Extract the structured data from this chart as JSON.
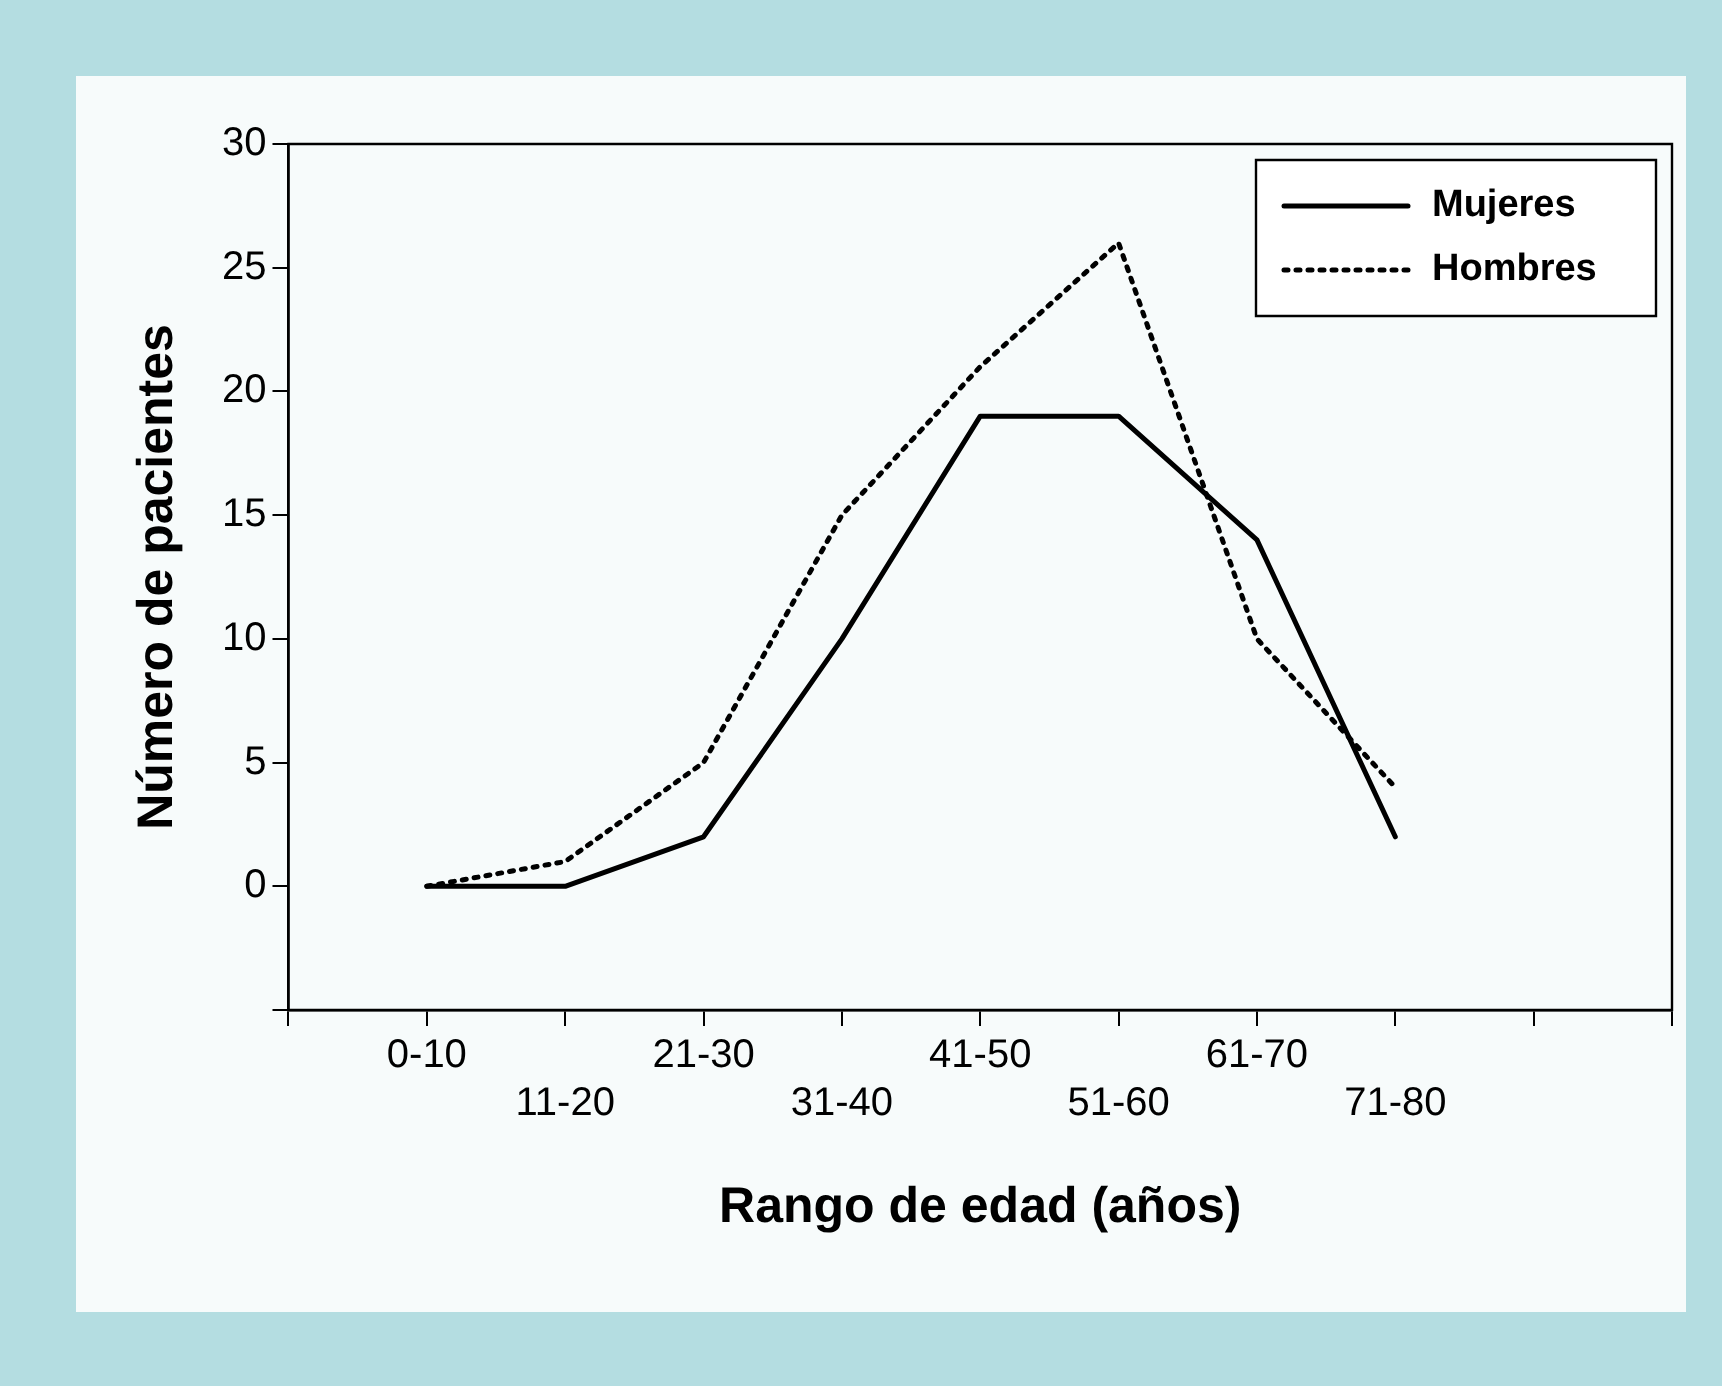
{
  "chart_data": {
    "type": "line",
    "xlabel": "Rango de edad (años)",
    "ylabel": "Número de pacientes",
    "categories": [
      null,
      "0-10",
      "11-20",
      "21-30",
      "31-40",
      "41-50",
      "51-60",
      "61-70",
      "71-80",
      null,
      null
    ],
    "series": [
      {
        "name": "Mujeres",
        "color": "#000000",
        "line_style": "solid",
        "values": [
          null,
          0,
          0,
          2,
          10,
          19,
          19,
          14,
          2,
          null,
          null
        ]
      },
      {
        "name": "Hombres",
        "color": "#000000",
        "line_style": "dotted",
        "values": [
          null,
          0,
          1,
          5,
          15,
          21,
          26,
          10,
          4,
          null,
          null
        ]
      }
    ],
    "ylim": [
      -5,
      30
    ],
    "yticks": [
      {
        "value": -5,
        "label": null
      },
      0,
      5,
      10,
      15,
      20,
      25,
      30
    ],
    "grid": false,
    "legend": "top right",
    "marker": "none"
  }
}
